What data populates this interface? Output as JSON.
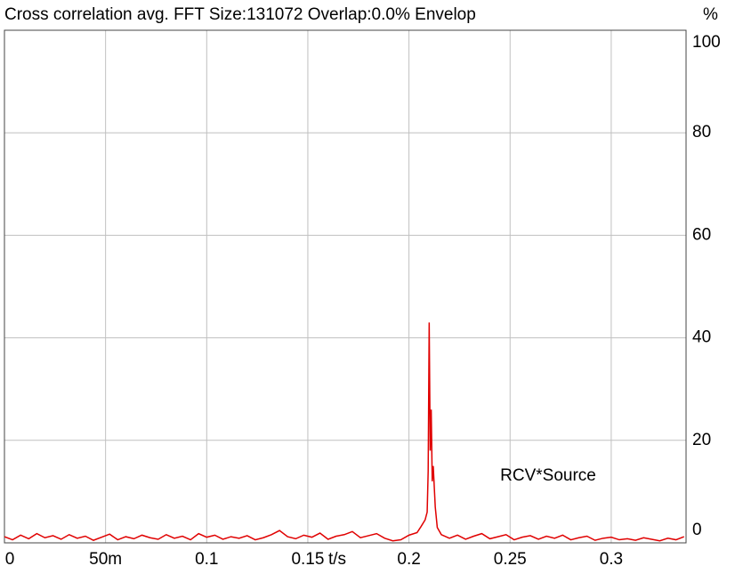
{
  "chart_data": {
    "type": "line",
    "title": "Cross correlation avg.  FFT Size:131072  Overlap:0.0%  Envelop",
    "ylabel": "%",
    "xlabel": "t/s",
    "annotation": "RCV*Source",
    "xlim": [
      0,
      0.337
    ],
    "ylim": [
      0,
      100
    ],
    "xticks": [
      0,
      {
        "value": 0.05,
        "label": "50m"
      },
      0.1,
      0.15,
      0.2,
      0.25,
      0.3
    ],
    "yticks": [
      0,
      20,
      40,
      60,
      80,
      100
    ],
    "grid": true,
    "series": [
      {
        "name": "RCV*Source",
        "color": "#e00000",
        "x": [
          0,
          0.004,
          0.008,
          0.012,
          0.016,
          0.02,
          0.024,
          0.028,
          0.032,
          0.036,
          0.04,
          0.044,
          0.048,
          0.052,
          0.056,
          0.06,
          0.064,
          0.068,
          0.072,
          0.076,
          0.08,
          0.084,
          0.088,
          0.092,
          0.096,
          0.1,
          0.104,
          0.108,
          0.112,
          0.116,
          0.12,
          0.124,
          0.128,
          0.132,
          0.136,
          0.14,
          0.144,
          0.148,
          0.152,
          0.156,
          0.16,
          0.164,
          0.168,
          0.172,
          0.176,
          0.18,
          0.184,
          0.188,
          0.192,
          0.196,
          0.2,
          0.204,
          0.206,
          0.208,
          0.209,
          0.2095,
          0.21,
          0.2105,
          0.211,
          0.2115,
          0.212,
          0.213,
          0.214,
          0.216,
          0.22,
          0.224,
          0.228,
          0.232,
          0.236,
          0.24,
          0.244,
          0.248,
          0.252,
          0.256,
          0.26,
          0.264,
          0.268,
          0.272,
          0.276,
          0.28,
          0.284,
          0.288,
          0.292,
          0.296,
          0.3,
          0.304,
          0.308,
          0.312,
          0.316,
          0.32,
          0.324,
          0.328,
          0.332,
          0.336
        ],
        "values": [
          1.2,
          0.6,
          1.5,
          0.8,
          1.8,
          1.0,
          1.4,
          0.7,
          1.6,
          0.9,
          1.3,
          0.5,
          1.1,
          1.7,
          0.6,
          1.2,
          0.8,
          1.5,
          1.0,
          0.7,
          1.6,
          0.9,
          1.3,
          0.6,
          1.8,
          1.1,
          1.5,
          0.7,
          1.2,
          0.9,
          1.4,
          0.6,
          1.0,
          1.6,
          2.4,
          1.2,
          0.8,
          1.5,
          1.1,
          1.9,
          0.7,
          1.3,
          1.6,
          2.2,
          1.0,
          1.4,
          1.8,
          0.9,
          0.4,
          0.6,
          1.5,
          2.0,
          3.2,
          4.5,
          6,
          14,
          43,
          18,
          26,
          12,
          15,
          7,
          3,
          1.6,
          0.9,
          1.5,
          0.7,
          1.3,
          1.8,
          0.8,
          1.2,
          1.6,
          0.6,
          1.1,
          1.4,
          0.7,
          1.3,
          0.9,
          1.5,
          0.6,
          1.0,
          1.3,
          0.5,
          0.9,
          1.1,
          0.6,
          0.8,
          0.5,
          1.0,
          0.7,
          0.4,
          0.9,
          0.6,
          1.2
        ]
      }
    ]
  }
}
